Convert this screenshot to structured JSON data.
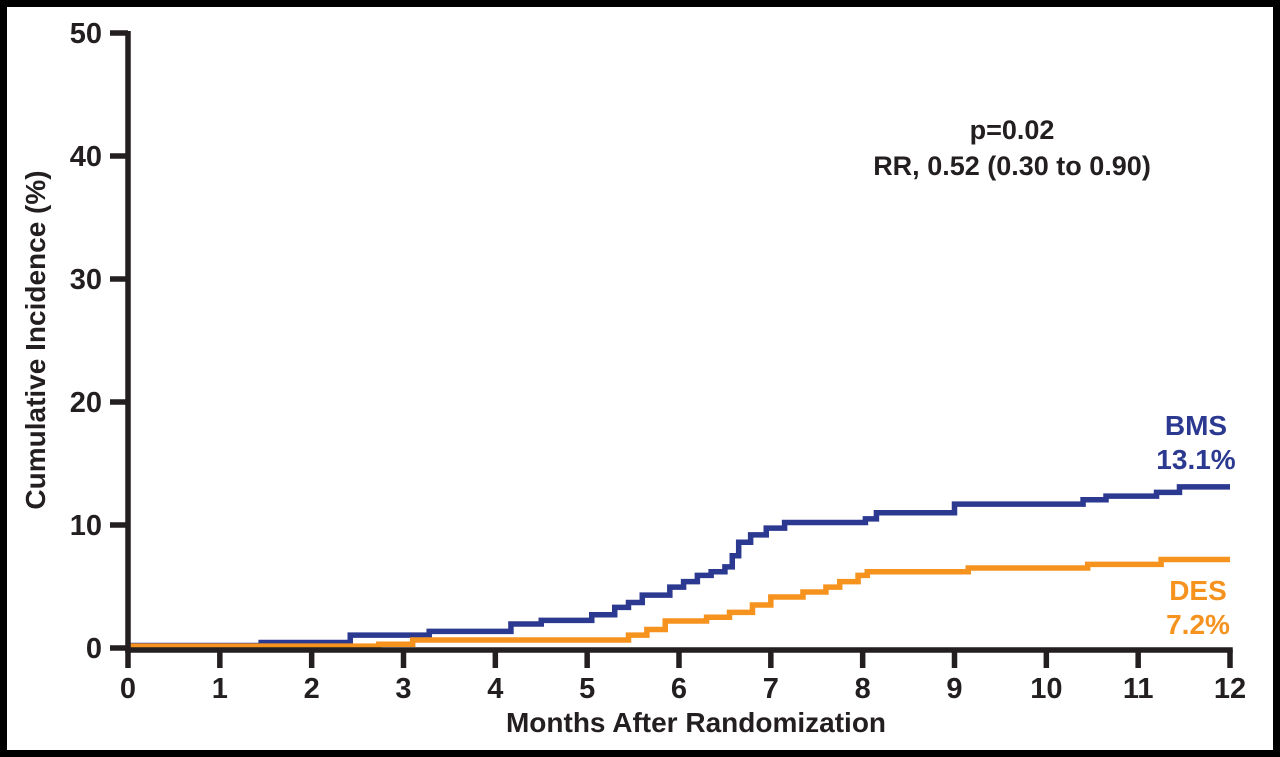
{
  "figure": {
    "background_color": "#FFFFFF",
    "border_color": "#000000",
    "text_color": "#231F20"
  },
  "annotation": {
    "line1": "p=0.02",
    "line2": "RR, 0.52 (0.30 to 0.90)"
  },
  "chart_data": {
    "type": "line",
    "subtype": "step-after",
    "title": "",
    "xlabel": "Months After Randomization",
    "ylabel": "Cumulative Incidence (%)",
    "xlim": [
      0,
      12
    ],
    "ylim": [
      0,
      50
    ],
    "xticks": [
      0,
      1,
      2,
      3,
      4,
      5,
      6,
      7,
      8,
      9,
      10,
      11,
      12
    ],
    "yticks": [
      0,
      10,
      20,
      30,
      40,
      50
    ],
    "grid": false,
    "legend_position": "end-of-line-labels",
    "annotations": [
      "p=0.02",
      "RR, 0.52 (0.30 to 0.90)"
    ],
    "axis_color": "#231F20",
    "series": [
      {
        "name": "BMS",
        "color": "#2B3990",
        "end_label": "BMS",
        "end_value_label": "13.1%",
        "final_value": 13.1,
        "points": [
          [
            0,
            0.2
          ],
          [
            1.45,
            0.45
          ],
          [
            2.42,
            1.05
          ],
          [
            3.28,
            1.35
          ],
          [
            4.17,
            1.95
          ],
          [
            4.5,
            2.25
          ],
          [
            5.05,
            2.7
          ],
          [
            5.3,
            3.3
          ],
          [
            5.45,
            3.7
          ],
          [
            5.6,
            4.3
          ],
          [
            5.9,
            4.95
          ],
          [
            6.05,
            5.4
          ],
          [
            6.2,
            5.9
          ],
          [
            6.35,
            6.2
          ],
          [
            6.5,
            6.6
          ],
          [
            6.58,
            7.5
          ],
          [
            6.65,
            8.6
          ],
          [
            6.78,
            9.2
          ],
          [
            6.95,
            9.75
          ],
          [
            7.15,
            10.2
          ],
          [
            8.03,
            10.5
          ],
          [
            8.15,
            11.0
          ],
          [
            9.0,
            11.7
          ],
          [
            10.4,
            12.05
          ],
          [
            10.65,
            12.35
          ],
          [
            11.2,
            12.65
          ],
          [
            11.45,
            13.1
          ],
          [
            12,
            13.1
          ]
        ]
      },
      {
        "name": "DES",
        "color": "#F6921E",
        "end_label": "DES",
        "end_value_label": "7.2%",
        "final_value": 7.2,
        "points": [
          [
            0,
            0.15
          ],
          [
            2.73,
            0.3
          ],
          [
            3.1,
            0.65
          ],
          [
            5.45,
            1.05
          ],
          [
            5.65,
            1.5
          ],
          [
            5.85,
            2.2
          ],
          [
            6.3,
            2.5
          ],
          [
            6.55,
            2.9
          ],
          [
            6.8,
            3.5
          ],
          [
            7.0,
            4.15
          ],
          [
            7.35,
            4.55
          ],
          [
            7.6,
            4.95
          ],
          [
            7.75,
            5.4
          ],
          [
            7.95,
            5.9
          ],
          [
            8.05,
            6.2
          ],
          [
            9.15,
            6.5
          ],
          [
            10.45,
            6.8
          ],
          [
            11.25,
            7.2
          ],
          [
            12,
            7.2
          ]
        ]
      }
    ]
  }
}
